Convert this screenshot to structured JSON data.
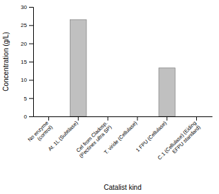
{
  "chart_data": {
    "type": "bar",
    "categories": [
      "No enzyme\n(control)",
      "At. 1L (Subtilase)",
      "Cel from Cladosp.\n(Pectinex ultra SP)",
      "T. viride (Cellulase)",
      "1 FPU (Cellulase)",
      "C.1 (Cellulase) (Eiding\nEFPU standard)"
    ],
    "values": [
      0.0,
      26.5,
      0.0,
      0.0,
      13.3,
      0.0
    ],
    "color": "#c0c0c0",
    "x_label": "Catalist kind",
    "y_label": "Concentration (g/L)",
    "ylim": [
      0,
      30
    ],
    "yticks": [
      0,
      5,
      10,
      15,
      20,
      25,
      30
    ],
    "grid": false
  }
}
